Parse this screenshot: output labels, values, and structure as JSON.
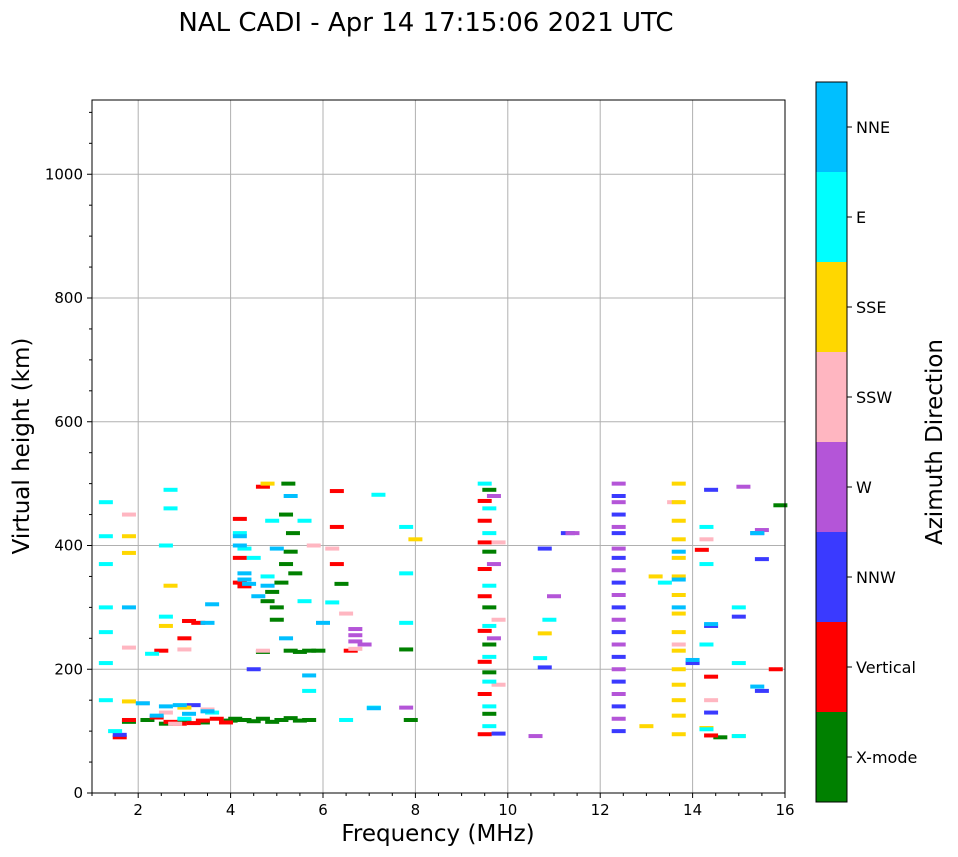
{
  "chart_data": {
    "type": "scatter",
    "title": "NAL CADI - Apr 14 17:15:06 2021 UTC",
    "xlabel": "Frequency (MHz)",
    "ylabel": "Virtual height (km)",
    "xlim": [
      1,
      16
    ],
    "ylim": [
      0,
      1120
    ],
    "xticks": [
      2,
      4,
      6,
      8,
      10,
      12,
      14,
      16
    ],
    "yticks": [
      0,
      200,
      400,
      600,
      800,
      1000
    ],
    "grid": true,
    "colorbar": {
      "label": "Azimuth Direction",
      "categories": [
        "X-mode",
        "Vertical",
        "NNW",
        "W",
        "SSW",
        "SSE",
        "E",
        "NNE"
      ],
      "colors": {
        "X-mode": "#008000",
        "Vertical": "#ff0000",
        "NNW": "#3a3aff",
        "W": "#b455d8",
        "SSW": "#ffb6c1",
        "SSE": "#ffd700",
        "E": "#00ffff",
        "NNE": "#00bfff"
      }
    },
    "series": [
      {
        "name": "X-mode",
        "points": [
          [
            1.8,
            115
          ],
          [
            2.2,
            118
          ],
          [
            2.6,
            112
          ],
          [
            3.0,
            117
          ],
          [
            3.4,
            114
          ],
          [
            4.0,
            117
          ],
          [
            4.1,
            120
          ],
          [
            4.3,
            118
          ],
          [
            4.5,
            116
          ],
          [
            4.7,
            120
          ],
          [
            4.9,
            115
          ],
          [
            5.1,
            118
          ],
          [
            5.3,
            121
          ],
          [
            5.5,
            117
          ],
          [
            5.7,
            118
          ],
          [
            4.8,
            310
          ],
          [
            4.9,
            325
          ],
          [
            5.0,
            300
          ],
          [
            5.1,
            340
          ],
          [
            5.2,
            370
          ],
          [
            5.3,
            390
          ],
          [
            5.35,
            420
          ],
          [
            5.4,
            355
          ],
          [
            5.0,
            280
          ],
          [
            5.2,
            450
          ],
          [
            5.25,
            500
          ],
          [
            5.3,
            230
          ],
          [
            5.5,
            228
          ],
          [
            5.7,
            230
          ],
          [
            5.9,
            230
          ],
          [
            4.7,
            228
          ],
          [
            6.4,
            338
          ],
          [
            7.8,
            232
          ],
          [
            7.9,
            118
          ],
          [
            9.6,
            490
          ],
          [
            9.6,
            390
          ],
          [
            9.6,
            300
          ],
          [
            9.6,
            240
          ],
          [
            9.6,
            195
          ],
          [
            9.6,
            128
          ],
          [
            14.6,
            90
          ],
          [
            15.9,
            465
          ]
        ]
      },
      {
        "name": "Vertical",
        "points": [
          [
            1.6,
            90
          ],
          [
            1.8,
            118
          ],
          [
            2.4,
            122
          ],
          [
            2.7,
            115
          ],
          [
            2.9,
            112
          ],
          [
            3.2,
            113
          ],
          [
            3.4,
            117
          ],
          [
            3.7,
            120
          ],
          [
            3.9,
            114
          ],
          [
            3.0,
            250
          ],
          [
            3.1,
            278
          ],
          [
            3.3,
            275
          ],
          [
            2.5,
            230
          ],
          [
            4.2,
            443
          ],
          [
            4.2,
            380
          ],
          [
            4.2,
            340
          ],
          [
            4.3,
            334
          ],
          [
            4.7,
            495
          ],
          [
            6.3,
            488
          ],
          [
            6.3,
            430
          ],
          [
            6.3,
            370
          ],
          [
            6.6,
            230
          ],
          [
            9.5,
            472
          ],
          [
            9.5,
            440
          ],
          [
            9.5,
            405
          ],
          [
            9.5,
            362
          ],
          [
            9.5,
            318
          ],
          [
            9.5,
            262
          ],
          [
            9.5,
            212
          ],
          [
            9.5,
            160
          ],
          [
            9.5,
            95
          ],
          [
            14.2,
            393
          ],
          [
            14.4,
            188
          ],
          [
            14.4,
            93
          ],
          [
            15.8,
            200
          ]
        ]
      },
      {
        "name": "NNW",
        "points": [
          [
            1.6,
            94
          ],
          [
            3.2,
            142
          ],
          [
            4.5,
            200
          ],
          [
            11.3,
            420
          ],
          [
            10.8,
            395
          ],
          [
            12.4,
            480
          ],
          [
            12.4,
            450
          ],
          [
            12.4,
            420
          ],
          [
            12.4,
            380
          ],
          [
            12.4,
            340
          ],
          [
            12.4,
            300
          ],
          [
            12.4,
            260
          ],
          [
            12.4,
            220
          ],
          [
            12.4,
            180
          ],
          [
            12.4,
            140
          ],
          [
            12.4,
            100
          ],
          [
            14.0,
            210
          ],
          [
            14.4,
            490
          ],
          [
            14.4,
            270
          ],
          [
            14.4,
            130
          ],
          [
            15.0,
            285
          ],
          [
            15.4,
            420
          ],
          [
            15.5,
            378
          ],
          [
            15.5,
            165
          ],
          [
            9.8,
            96
          ],
          [
            10.8,
            203
          ]
        ]
      },
      {
        "name": "W",
        "points": [
          [
            6.7,
            265
          ],
          [
            6.7,
            255
          ],
          [
            6.7,
            245
          ],
          [
            6.9,
            240
          ],
          [
            12.4,
            500
          ],
          [
            12.4,
            470
          ],
          [
            12.4,
            430
          ],
          [
            12.4,
            395
          ],
          [
            12.4,
            360
          ],
          [
            12.4,
            320
          ],
          [
            12.4,
            280
          ],
          [
            12.4,
            240
          ],
          [
            12.4,
            200
          ],
          [
            12.4,
            160
          ],
          [
            12.4,
            120
          ],
          [
            10.6,
            92
          ],
          [
            11.0,
            318
          ],
          [
            11.4,
            420
          ],
          [
            9.7,
            480
          ],
          [
            9.7,
            370
          ],
          [
            9.7,
            250
          ],
          [
            15.1,
            495
          ],
          [
            15.5,
            425
          ],
          [
            7.8,
            138
          ]
        ]
      },
      {
        "name": "SSW",
        "points": [
          [
            1.8,
            450
          ],
          [
            1.8,
            235
          ],
          [
            2.1,
            145
          ],
          [
            2.6,
            130
          ],
          [
            2.8,
            112
          ],
          [
            3.0,
            232
          ],
          [
            3.5,
            135
          ],
          [
            4.7,
            230
          ],
          [
            5.8,
            400
          ],
          [
            6.2,
            395
          ],
          [
            6.5,
            290
          ],
          [
            6.7,
            233
          ],
          [
            9.8,
            405
          ],
          [
            9.8,
            280
          ],
          [
            9.8,
            175
          ],
          [
            13.7,
            240
          ],
          [
            14.3,
            410
          ],
          [
            14.4,
            150
          ],
          [
            13.6,
            470
          ]
        ]
      },
      {
        "name": "SSE",
        "points": [
          [
            1.8,
            415
          ],
          [
            1.8,
            388
          ],
          [
            1.8,
            148
          ],
          [
            2.7,
            335
          ],
          [
            2.6,
            270
          ],
          [
            3.0,
            138
          ],
          [
            4.8,
            500
          ],
          [
            8.0,
            410
          ],
          [
            10.8,
            258
          ],
          [
            13.0,
            108
          ],
          [
            13.2,
            350
          ],
          [
            13.7,
            500
          ],
          [
            13.7,
            470
          ],
          [
            13.7,
            440
          ],
          [
            13.7,
            410
          ],
          [
            13.7,
            380
          ],
          [
            13.7,
            350
          ],
          [
            13.7,
            320
          ],
          [
            13.7,
            290
          ],
          [
            13.7,
            260
          ],
          [
            13.7,
            230
          ],
          [
            13.7,
            200
          ],
          [
            13.7,
            175
          ],
          [
            13.7,
            150
          ],
          [
            13.7,
            125
          ],
          [
            13.7,
            95
          ],
          [
            14.3,
            105
          ],
          [
            15.0,
            92
          ]
        ]
      },
      {
        "name": "E",
        "points": [
          [
            1.3,
            470
          ],
          [
            1.3,
            415
          ],
          [
            1.3,
            370
          ],
          [
            1.3,
            300
          ],
          [
            1.3,
            260
          ],
          [
            1.3,
            210
          ],
          [
            1.3,
            150
          ],
          [
            1.5,
            100
          ],
          [
            2.7,
            490
          ],
          [
            2.7,
            460
          ],
          [
            2.6,
            400
          ],
          [
            2.6,
            285
          ],
          [
            2.3,
            225
          ],
          [
            3.0,
            120
          ],
          [
            3.6,
            130
          ],
          [
            4.2,
            420
          ],
          [
            4.3,
            395
          ],
          [
            4.5,
            380
          ],
          [
            4.8,
            350
          ],
          [
            4.9,
            440
          ],
          [
            5.6,
            440
          ],
          [
            5.6,
            310
          ],
          [
            5.7,
            165
          ],
          [
            6.2,
            308
          ],
          [
            6.5,
            118
          ],
          [
            7.1,
            138
          ],
          [
            7.2,
            482
          ],
          [
            7.8,
            430
          ],
          [
            7.8,
            355
          ],
          [
            7.8,
            275
          ],
          [
            9.5,
            500
          ],
          [
            9.6,
            460
          ],
          [
            9.6,
            420
          ],
          [
            9.6,
            335
          ],
          [
            9.6,
            270
          ],
          [
            9.6,
            220
          ],
          [
            9.6,
            180
          ],
          [
            9.6,
            140
          ],
          [
            9.6,
            108
          ],
          [
            10.9,
            280
          ],
          [
            10.7,
            218
          ],
          [
            13.4,
            340
          ],
          [
            14.3,
            430
          ],
          [
            14.3,
            370
          ],
          [
            14.3,
            240
          ],
          [
            14.3,
            103
          ],
          [
            15.0,
            300
          ],
          [
            15.0,
            210
          ],
          [
            15.0,
            92
          ]
        ]
      },
      {
        "name": "NNE",
        "points": [
          [
            1.8,
            300
          ],
          [
            2.1,
            145
          ],
          [
            2.4,
            125
          ],
          [
            2.6,
            140
          ],
          [
            2.9,
            142
          ],
          [
            3.1,
            128
          ],
          [
            3.5,
            132
          ],
          [
            3.6,
            305
          ],
          [
            3.5,
            275
          ],
          [
            4.2,
            415
          ],
          [
            4.2,
            400
          ],
          [
            4.3,
            355
          ],
          [
            4.3,
            345
          ],
          [
            4.4,
            338
          ],
          [
            4.6,
            318
          ],
          [
            4.8,
            335
          ],
          [
            5.0,
            395
          ],
          [
            5.2,
            250
          ],
          [
            5.3,
            480
          ],
          [
            5.7,
            190
          ],
          [
            6.0,
            275
          ],
          [
            7.1,
            137
          ],
          [
            13.7,
            390
          ],
          [
            13.7,
            345
          ],
          [
            13.7,
            300
          ],
          [
            14.0,
            215
          ],
          [
            14.4,
            273
          ],
          [
            15.4,
            172
          ],
          [
            15.4,
            420
          ]
        ]
      }
    ]
  }
}
